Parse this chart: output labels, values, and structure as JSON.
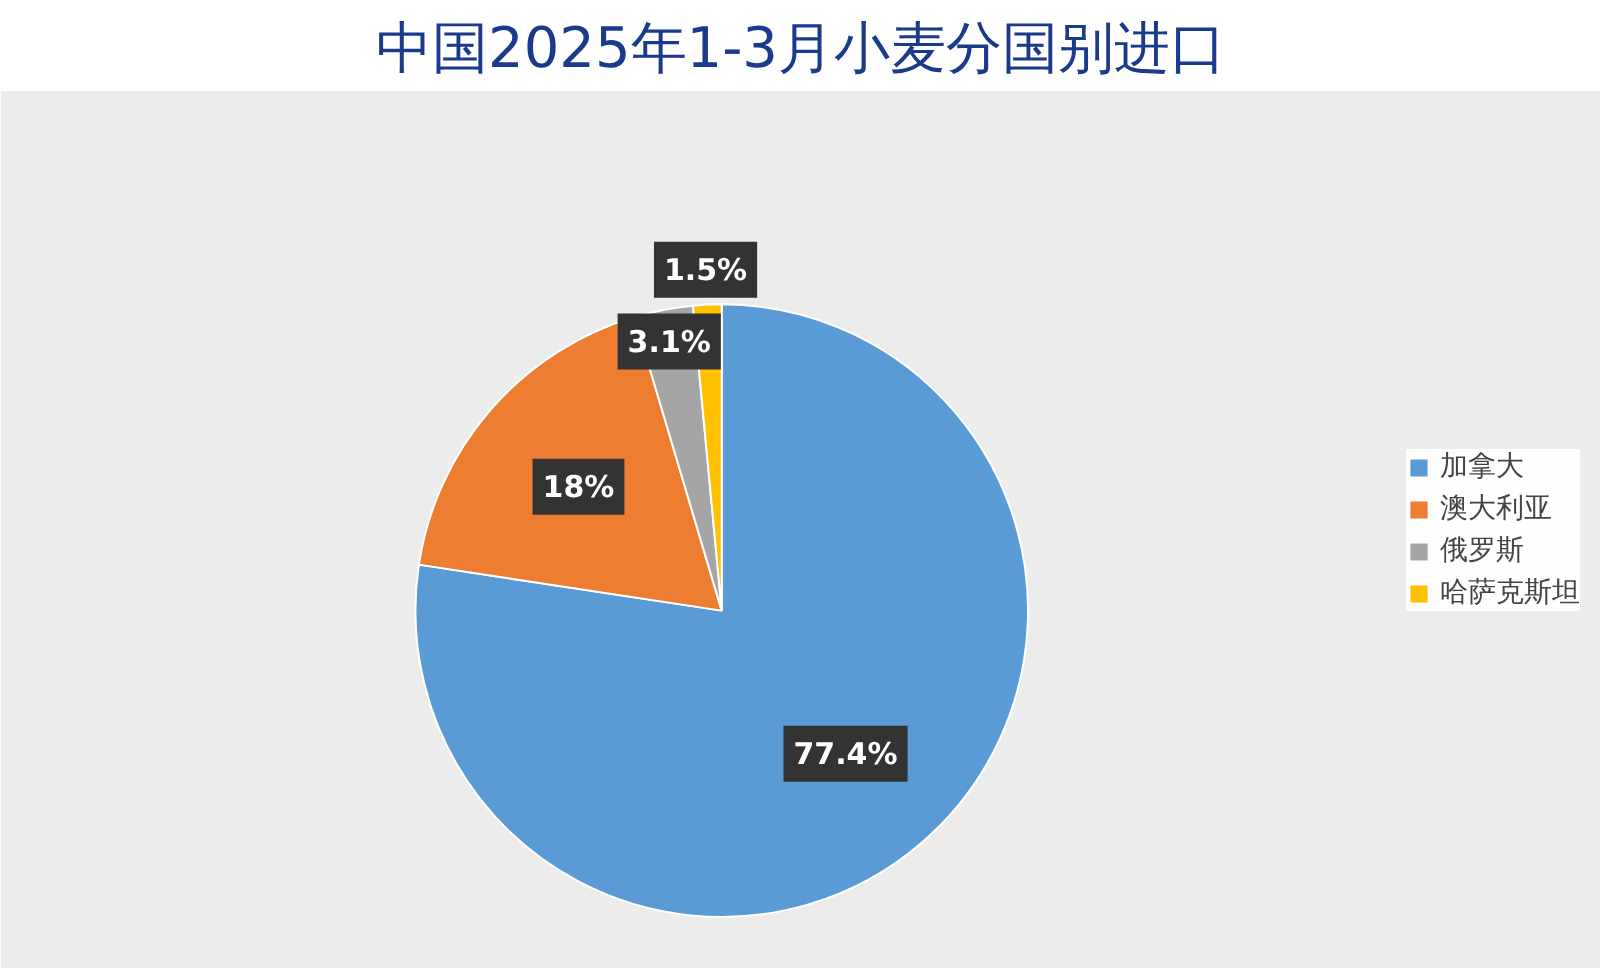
{
  "chart_data": {
    "type": "pie",
    "title": "中国2025年1-3月小麦分国别进口",
    "categories": [
      "加拿大",
      "澳大利亚",
      "俄罗斯",
      "哈萨克斯坦"
    ],
    "values": [
      77.4,
      18,
      3.1,
      1.5
    ],
    "colors": [
      "#5b9bd5",
      "#ed7d31",
      "#a5a5a5",
      "#ffc000"
    ],
    "value_labels": [
      "77.4%",
      "18%",
      "3.1%",
      "1.5%"
    ],
    "legend": "right"
  }
}
